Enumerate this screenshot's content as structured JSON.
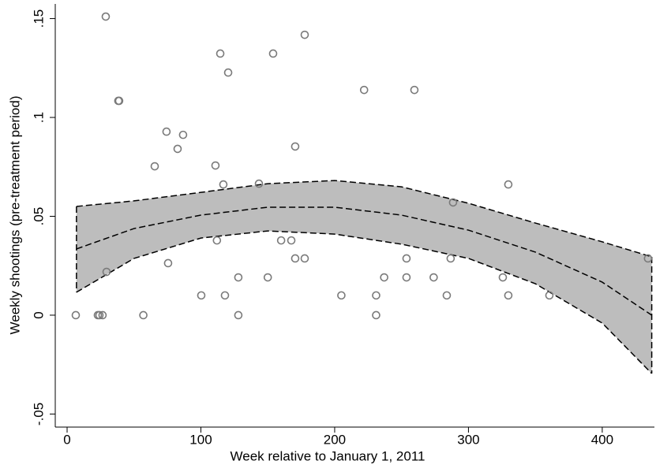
{
  "chart_data": {
    "type": "scatter",
    "xlabel": "Week relative to January 1, 2011",
    "ylabel": "Weekly shootings (pre-treatment period)",
    "xlim": [
      -8.85,
      439
    ],
    "ylim": [
      -0.0566,
      0.1574
    ],
    "xticks": [
      0,
      100,
      200,
      300,
      400
    ],
    "yticks": [
      {
        "value": -0.05,
        "label": "-.05"
      },
      0,
      {
        "value": 0.05,
        "label": ".05"
      },
      {
        "value": 0.1,
        "label": ".1"
      },
      {
        "value": 0.15,
        "label": ".15"
      }
    ],
    "series": [
      {
        "color": "#7a7a7a",
        "x": [
          6.5,
          23,
          24.2,
          26.5,
          28.9,
          29.5,
          38.3,
          38.9,
          57,
          65.5,
          74.3,
          75.5,
          82.6,
          86.7,
          100.3,
          110.9,
          112,
          114.5,
          116.8,
          118,
          120.4,
          128,
          128,
          143.4,
          150,
          154,
          160,
          167.6,
          170.5,
          170.5,
          177.6,
          177.6,
          205,
          222,
          231,
          231,
          237,
          253.7,
          253.7,
          259.6,
          274,
          283.8,
          286.7,
          288.5,
          325.7,
          329.8,
          329.8,
          360.5,
          434.2
        ],
        "values": [
          0,
          0,
          0,
          0,
          0.151,
          0.0219,
          0.1084,
          0.1084,
          0,
          0.0753,
          0.0928,
          0.0263,
          0.0841,
          0.0912,
          0.01,
          0.0757,
          0.0378,
          0.1323,
          0.0661,
          0.01,
          0.1227,
          0.0191,
          0,
          0.0665,
          0.0191,
          0.1323,
          0.0378,
          0.0378,
          0.0853,
          0.0287,
          0.1418,
          0.0287,
          0.01,
          0.1139,
          0.01,
          0,
          0.0191,
          0.0287,
          0.0191,
          0.1139,
          0.0191,
          0.01,
          0.0287,
          0.057,
          0.0191,
          0.0661,
          0.01,
          0.01,
          0.0287
        ]
      }
    ],
    "fit": {
      "color": "#000000",
      "band_color": "#bdbdbd",
      "x": [
        7,
        50,
        100,
        150,
        200,
        250,
        300,
        350,
        400,
        437
      ],
      "values": [
        0.0335,
        0.0438,
        0.0506,
        0.0546,
        0.0546,
        0.0506,
        0.043,
        0.0319,
        0.0167,
        0
      ],
      "upper": [
        0.055,
        0.0578,
        0.0621,
        0.0665,
        0.0681,
        0.0649,
        0.0566,
        0.0466,
        0.0371,
        0.0295
      ],
      "lower": [
        0.0116,
        0.0287,
        0.039,
        0.0426,
        0.041,
        0.0359,
        0.0287,
        0.0159,
        -0.004,
        -0.0295
      ]
    }
  }
}
